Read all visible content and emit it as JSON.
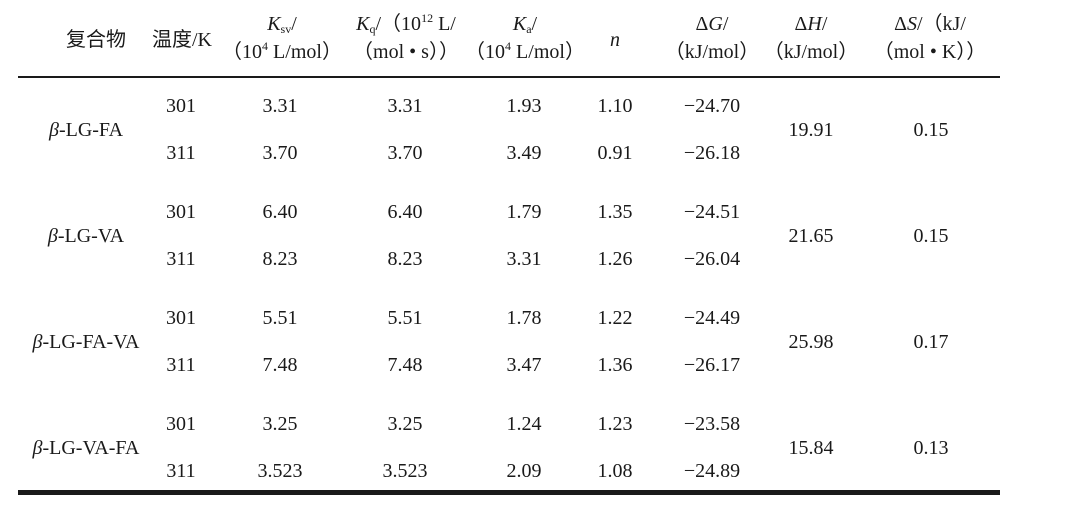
{
  "table": {
    "headers": [
      {
        "key": "compound",
        "line1": "复合物",
        "line2": ""
      },
      {
        "key": "temp",
        "line1": "温度/K",
        "line2": ""
      },
      {
        "key": "ksv",
        "sym": "K",
        "sub": "sv",
        "line1_rest": "/",
        "line2_pre": "（10",
        "line2_sup": "4",
        "line2_post": " L/mol）"
      },
      {
        "key": "kq",
        "sym": "K",
        "sub": "q",
        "line1_rest": "/（10",
        "line1_sup": "12",
        "line1_post": " L/",
        "line2": "（mol • s））"
      },
      {
        "key": "ka",
        "sym": "K",
        "sub": "a",
        "line1_rest": "/",
        "line2_pre": "（10",
        "line2_sup": "4",
        "line2_post": " L/mol）"
      },
      {
        "key": "n",
        "sym": "n"
      },
      {
        "key": "dg",
        "pre": "Δ",
        "sym": "G",
        "line1_rest": "/",
        "line2": "（kJ/mol）"
      },
      {
        "key": "dh",
        "pre": "Δ",
        "sym": "H",
        "line1_rest": "/",
        "line2": "（kJ/mol）"
      },
      {
        "key": "ds",
        "pre": "Δ",
        "sym": "S",
        "line1_rest": "/（kJ/",
        "line2": "（mol • K））"
      }
    ],
    "groups": [
      {
        "beta": "β",
        "name": "-LG-FA",
        "dh": "19.91",
        "ds": "0.15",
        "rows": [
          {
            "temp": "301",
            "ksv": "3.31",
            "kq": "3.31",
            "ka": "1.93",
            "n": "1.10",
            "dg": "−24.70"
          },
          {
            "temp": "311",
            "ksv": "3.70",
            "kq": "3.70",
            "ka": "3.49",
            "n": "0.91",
            "dg": "−26.18"
          }
        ]
      },
      {
        "beta": "β",
        "name": "-LG-VA",
        "dh": "21.65",
        "ds": "0.15",
        "rows": [
          {
            "temp": "301",
            "ksv": "6.40",
            "kq": "6.40",
            "ka": "1.79",
            "n": "1.35",
            "dg": "−24.51"
          },
          {
            "temp": "311",
            "ksv": "8.23",
            "kq": "8.23",
            "ka": "3.31",
            "n": "1.26",
            "dg": "−26.04"
          }
        ]
      },
      {
        "beta": "β",
        "name": "-LG-FA-VA",
        "dh": "25.98",
        "ds": "0.17",
        "rows": [
          {
            "temp": "301",
            "ksv": "5.51",
            "kq": "5.51",
            "ka": "1.78",
            "n": "1.22",
            "dg": "−24.49"
          },
          {
            "temp": "311",
            "ksv": "7.48",
            "kq": "7.48",
            "ka": "3.47",
            "n": "1.36",
            "dg": "−26.17"
          }
        ]
      },
      {
        "beta": "β",
        "name": "-LG-VA-FA",
        "dh": "15.84",
        "ds": "0.13",
        "rows": [
          {
            "temp": "301",
            "ksv": "3.25",
            "kq": "3.25",
            "ka": "1.24",
            "n": "1.23",
            "dg": "−23.58"
          },
          {
            "temp": "311",
            "ksv": "3.523",
            "kq": "3.523",
            "ka": "2.09",
            "n": "1.08",
            "dg": "−24.89"
          }
        ]
      }
    ]
  }
}
